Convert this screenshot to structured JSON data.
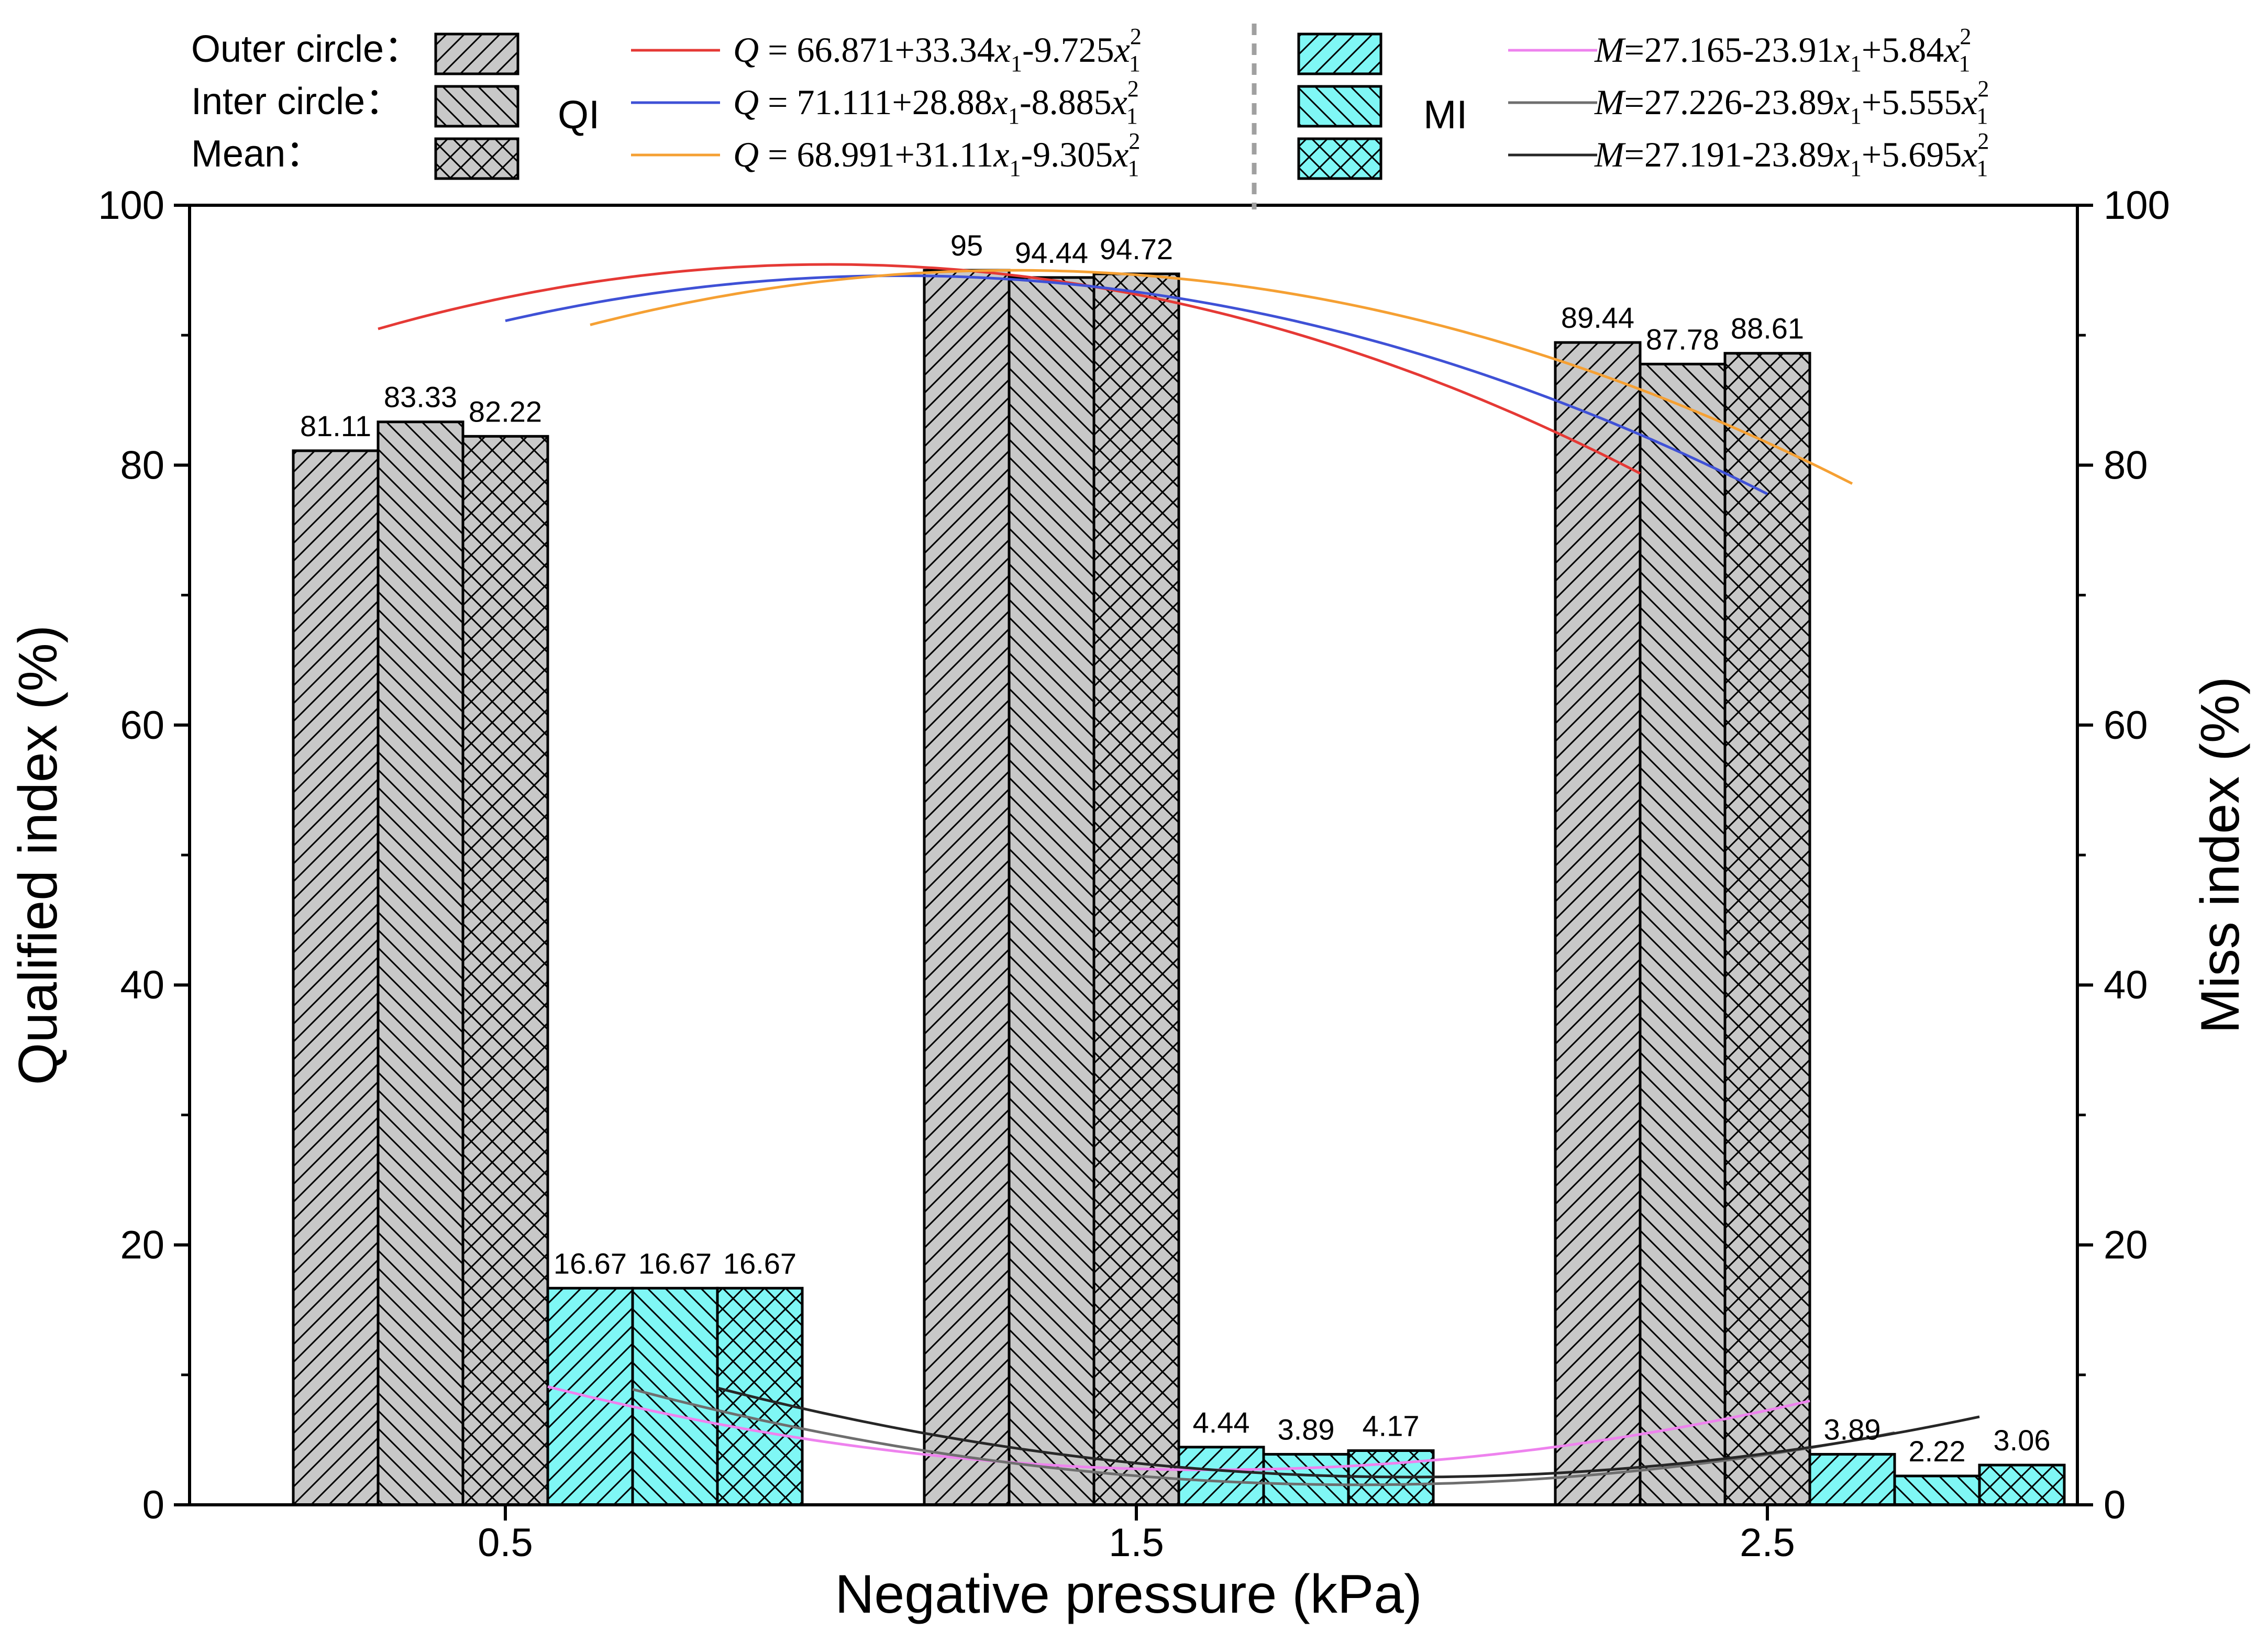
{
  "chart_data": {
    "type": "bar",
    "xlabel": "Negative pressure (kPa)",
    "ylabel": "Qualified index (%)",
    "y2label": "Miss index (%)",
    "ylim": [
      0,
      100
    ],
    "y2lim": [
      0,
      100
    ],
    "yticks": [
      "0",
      "20",
      "40",
      "60",
      "80",
      "100"
    ],
    "y2ticks": [
      "0",
      "20",
      "40",
      "60",
      "80",
      "100"
    ],
    "categories": [
      "0.5",
      "1.5",
      "2.5"
    ],
    "series": [
      {
        "name": "QI outer circle",
        "group": "QI",
        "pattern": "outer",
        "values": [
          81.11,
          95,
          89.44
        ],
        "labels": [
          "81.11",
          "95",
          "89.44"
        ]
      },
      {
        "name": "QI inter circle",
        "group": "QI",
        "pattern": "inter",
        "values": [
          83.33,
          94.44,
          87.78
        ],
        "labels": [
          "83.33",
          "94.44",
          "87.78"
        ]
      },
      {
        "name": "QI mean",
        "group": "QI",
        "pattern": "mean",
        "values": [
          82.22,
          94.72,
          88.61
        ],
        "labels": [
          "82.22",
          "94.72",
          "88.61"
        ]
      },
      {
        "name": "MI outer circle",
        "group": "MI",
        "pattern": "outer",
        "values": [
          16.67,
          4.44,
          3.89
        ],
        "labels": [
          "16.67",
          "4.44",
          "3.89"
        ]
      },
      {
        "name": "MI inter circle",
        "group": "MI",
        "pattern": "inter",
        "values": [
          16.67,
          3.89,
          2.22
        ],
        "labels": [
          "16.67",
          "3.89",
          "2.22"
        ]
      },
      {
        "name": "MI mean",
        "group": "MI",
        "pattern": "mean",
        "values": [
          16.67,
          4.17,
          3.06
        ],
        "labels": [
          "16.67",
          "4.17",
          "3.06"
        ]
      }
    ],
    "fits": [
      {
        "name": "QI outer fit",
        "var": "Q",
        "a": 66.871,
        "b": 33.34,
        "c": -9.725,
        "color": "#e53935",
        "eq": {
          "lhs": "Q",
          "rhs": " = 66.871+33.34",
          "mid": "-9.725"
        }
      },
      {
        "name": "QI inter fit",
        "var": "Q",
        "a": 71.111,
        "b": 28.88,
        "c": -8.885,
        "color": "#3f51d6",
        "eq": {
          "lhs": "Q",
          "rhs": " = 71.111+28.88",
          "mid": "-8.885"
        }
      },
      {
        "name": "QI mean fit",
        "var": "Q",
        "a": 68.991,
        "b": 31.11,
        "c": -9.305,
        "color": "#f5a033",
        "eq": {
          "lhs": "Q",
          "rhs": " = 68.991+31.11",
          "mid": "-9.305"
        }
      },
      {
        "name": "MI outer fit",
        "var": "M",
        "a": 27.165,
        "b": -23.91,
        "c": 5.84,
        "color": "#ee82ee",
        "eq": {
          "lhs": "M",
          "rhs": "=27.165-23.91",
          "mid": "+5.84"
        }
      },
      {
        "name": "MI inter fit",
        "var": "M",
        "a": 27.226,
        "b": -23.89,
        "c": 5.555,
        "color": "#6e6e6e",
        "eq": {
          "lhs": "M",
          "rhs": "=27.226-23.89",
          "mid": "+5.555"
        }
      },
      {
        "name": "MI mean fit",
        "var": "M",
        "a": 27.191,
        "b": -23.89,
        "c": 5.695,
        "color": "#262626",
        "eq": {
          "lhs": "M",
          "rhs": "=27.191-23.89",
          "mid": "+5.695"
        }
      }
    ],
    "legend": {
      "row_labels": [
        "Outer circle：",
        "Inter circle：",
        "Mean："
      ],
      "group_labels": [
        "QI",
        "MI"
      ],
      "fit_var": "x",
      "fit_sub": "1",
      "fit_sup": "2"
    },
    "colors": {
      "qi_fill": "#c8c8c8",
      "mi_fill": "#7ff7f5",
      "edge": "#000000"
    }
  }
}
